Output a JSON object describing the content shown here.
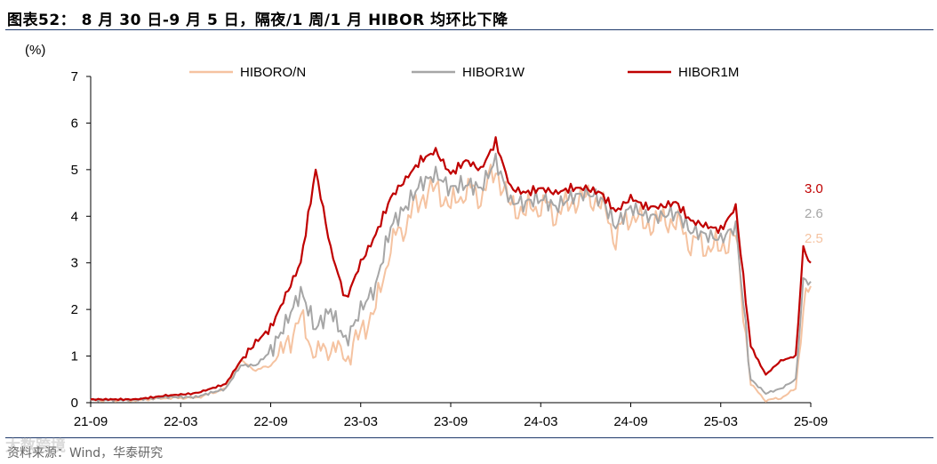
{
  "title": "图表52： 8 月 30 日-9 月 5 日，隔夜/1 周/1 月 HIBOR 均环比下降",
  "source": "资料来源：Wind，华泰研究",
  "watermark": "大数跨境",
  "chart_data": {
    "type": "line",
    "ylabel": "(%)",
    "ylim": [
      0,
      7
    ],
    "yticks": [
      0,
      1,
      2,
      3,
      4,
      5,
      6,
      7
    ],
    "xticks": [
      "21-09",
      "22-03",
      "22-09",
      "23-03",
      "23-09",
      "24-03",
      "24-09",
      "25-03",
      "25-09"
    ],
    "grid": false,
    "legend_position": "top",
    "series": [
      {
        "name": "HIBORO/N",
        "color": "#f5c3a1",
        "end_label": "2.5",
        "points": [
          [
            "21-09",
            0.05
          ],
          [
            "21-12",
            0.05
          ],
          [
            "22-02",
            0.1
          ],
          [
            "22-04",
            0.1
          ],
          [
            "22-06",
            0.3
          ],
          [
            "22-07",
            0.9
          ],
          [
            "22-08",
            0.7
          ],
          [
            "22-09",
            0.8
          ],
          [
            "22-10",
            1.2
          ],
          [
            "22-11",
            1.8
          ],
          [
            "22-12",
            1.0
          ],
          [
            "23-01",
            1.3
          ],
          [
            "23-02",
            0.9
          ],
          [
            "23-03",
            1.5
          ],
          [
            "23-04",
            2.0
          ],
          [
            "23-05",
            3.4
          ],
          [
            "23-06",
            3.9
          ],
          [
            "23-07",
            4.4
          ],
          [
            "23-08",
            4.6
          ],
          [
            "23-09",
            4.2
          ],
          [
            "23-10",
            4.6
          ],
          [
            "23-11",
            4.5
          ],
          [
            "23-12",
            5.0
          ],
          [
            "24-01",
            4.2
          ],
          [
            "24-02",
            4.1
          ],
          [
            "24-03",
            4.3
          ],
          [
            "24-04",
            4.1
          ],
          [
            "24-05",
            4.3
          ],
          [
            "24-06",
            4.4
          ],
          [
            "24-07",
            4.3
          ],
          [
            "24-08",
            3.6
          ],
          [
            "24-09",
            4.1
          ],
          [
            "24-10",
            3.8
          ],
          [
            "24-11",
            3.9
          ],
          [
            "24-12",
            3.9
          ],
          [
            "25-01",
            3.5
          ],
          [
            "25-02",
            3.4
          ],
          [
            "25-03",
            3.3
          ],
          [
            "25-04",
            3.6
          ],
          [
            "25-05",
            0.4
          ],
          [
            "25-06",
            0.05
          ],
          [
            "25-07",
            0.1
          ],
          [
            "25-08",
            0.3
          ],
          [
            "25-08b",
            2.0
          ],
          [
            "25-09",
            2.5
          ]
        ]
      },
      {
        "name": "HIBOR1W",
        "color": "#a6a6a6",
        "end_label": "2.6",
        "points": [
          [
            "21-09",
            0.06
          ],
          [
            "21-12",
            0.06
          ],
          [
            "22-02",
            0.12
          ],
          [
            "22-04",
            0.12
          ],
          [
            "22-06",
            0.3
          ],
          [
            "22-07",
            0.8
          ],
          [
            "22-08",
            0.8
          ],
          [
            "22-09",
            1.1
          ],
          [
            "22-10",
            1.7
          ],
          [
            "22-11",
            2.4
          ],
          [
            "22-12",
            1.6
          ],
          [
            "23-01",
            2.0
          ],
          [
            "23-02",
            1.3
          ],
          [
            "23-03",
            2.0
          ],
          [
            "23-04",
            2.5
          ],
          [
            "23-05",
            3.8
          ],
          [
            "23-06",
            4.2
          ],
          [
            "23-07",
            4.7
          ],
          [
            "23-08",
            4.9
          ],
          [
            "23-09",
            4.6
          ],
          [
            "23-10",
            4.7
          ],
          [
            "23-11",
            4.6
          ],
          [
            "23-12",
            5.2
          ],
          [
            "24-01",
            4.3
          ],
          [
            "24-02",
            4.3
          ],
          [
            "24-03",
            4.4
          ],
          [
            "24-04",
            4.2
          ],
          [
            "24-05",
            4.4
          ],
          [
            "24-06",
            4.5
          ],
          [
            "24-07",
            4.4
          ],
          [
            "24-08",
            3.8
          ],
          [
            "24-09",
            4.2
          ],
          [
            "24-10",
            4.0
          ],
          [
            "24-11",
            4.0
          ],
          [
            "24-12",
            4.1
          ],
          [
            "25-01",
            3.7
          ],
          [
            "25-02",
            3.6
          ],
          [
            "25-03",
            3.5
          ],
          [
            "25-04",
            3.8
          ],
          [
            "25-05",
            0.5
          ],
          [
            "25-06",
            0.2
          ],
          [
            "25-07",
            0.3
          ],
          [
            "25-08",
            0.5
          ],
          [
            "25-08b",
            2.6
          ],
          [
            "25-09",
            2.6
          ]
        ]
      },
      {
        "name": "HIBOR1M",
        "color": "#c00000",
        "end_label": "3.0",
        "points": [
          [
            "21-09",
            0.07
          ],
          [
            "21-12",
            0.07
          ],
          [
            "22-02",
            0.15
          ],
          [
            "22-04",
            0.2
          ],
          [
            "22-06",
            0.4
          ],
          [
            "22-07",
            0.9
          ],
          [
            "22-08",
            1.3
          ],
          [
            "22-09",
            1.6
          ],
          [
            "22-10",
            2.3
          ],
          [
            "22-11",
            3.0
          ],
          [
            "22-12",
            5.0
          ],
          [
            "23-01",
            3.3
          ],
          [
            "23-02",
            2.2
          ],
          [
            "23-03",
            3.0
          ],
          [
            "23-04",
            3.6
          ],
          [
            "23-05",
            4.4
          ],
          [
            "23-06",
            4.8
          ],
          [
            "23-07",
            5.2
          ],
          [
            "23-08",
            5.4
          ],
          [
            "23-09",
            4.9
          ],
          [
            "23-10",
            5.2
          ],
          [
            "23-11",
            5.0
          ],
          [
            "23-12",
            5.6
          ],
          [
            "24-01",
            4.6
          ],
          [
            "24-02",
            4.5
          ],
          [
            "24-03",
            4.6
          ],
          [
            "24-04",
            4.5
          ],
          [
            "24-05",
            4.6
          ],
          [
            "24-06",
            4.6
          ],
          [
            "24-07",
            4.5
          ],
          [
            "24-08",
            4.1
          ],
          [
            "24-09",
            4.4
          ],
          [
            "24-10",
            4.2
          ],
          [
            "24-11",
            4.2
          ],
          [
            "24-12",
            4.3
          ],
          [
            "25-01",
            3.9
          ],
          [
            "25-02",
            3.8
          ],
          [
            "25-03",
            3.7
          ],
          [
            "25-04",
            4.2
          ],
          [
            "25-05",
            1.2
          ],
          [
            "25-06",
            0.6
          ],
          [
            "25-07",
            0.9
          ],
          [
            "25-08",
            1.0
          ],
          [
            "25-08b",
            3.3
          ],
          [
            "25-09",
            3.0
          ]
        ]
      }
    ]
  }
}
